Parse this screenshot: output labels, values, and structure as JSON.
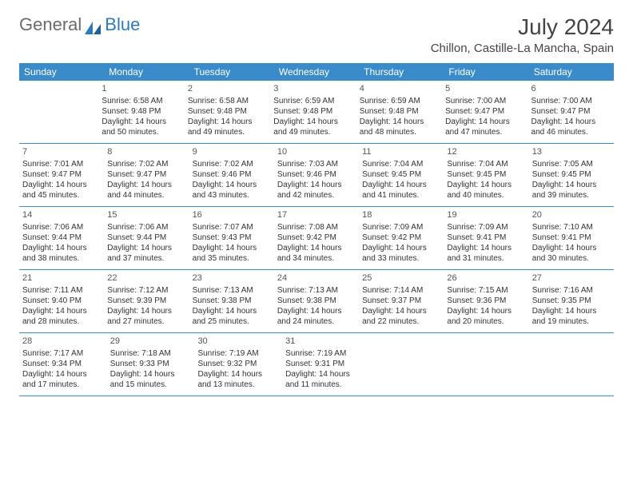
{
  "brand": {
    "part1": "General",
    "part2": "Blue"
  },
  "title": "July 2024",
  "location": "Chillon, Castille-La Mancha, Spain",
  "colors": {
    "header_bg": "#3a8bc9",
    "header_text": "#ffffff",
    "row_border": "#3a8bc9",
    "body_text": "#333333",
    "logo_gray": "#6b6b6b",
    "logo_blue": "#2b7bbf",
    "page_bg": "#ffffff"
  },
  "days_of_week": [
    "Sunday",
    "Monday",
    "Tuesday",
    "Wednesday",
    "Thursday",
    "Friday",
    "Saturday"
  ],
  "weeks": [
    [
      null,
      {
        "n": "1",
        "sr": "Sunrise: 6:58 AM",
        "ss": "Sunset: 9:48 PM",
        "d1": "Daylight: 14 hours",
        "d2": "and 50 minutes."
      },
      {
        "n": "2",
        "sr": "Sunrise: 6:58 AM",
        "ss": "Sunset: 9:48 PM",
        "d1": "Daylight: 14 hours",
        "d2": "and 49 minutes."
      },
      {
        "n": "3",
        "sr": "Sunrise: 6:59 AM",
        "ss": "Sunset: 9:48 PM",
        "d1": "Daylight: 14 hours",
        "d2": "and 49 minutes."
      },
      {
        "n": "4",
        "sr": "Sunrise: 6:59 AM",
        "ss": "Sunset: 9:48 PM",
        "d1": "Daylight: 14 hours",
        "d2": "and 48 minutes."
      },
      {
        "n": "5",
        "sr": "Sunrise: 7:00 AM",
        "ss": "Sunset: 9:47 PM",
        "d1": "Daylight: 14 hours",
        "d2": "and 47 minutes."
      },
      {
        "n": "6",
        "sr": "Sunrise: 7:00 AM",
        "ss": "Sunset: 9:47 PM",
        "d1": "Daylight: 14 hours",
        "d2": "and 46 minutes."
      }
    ],
    [
      {
        "n": "7",
        "sr": "Sunrise: 7:01 AM",
        "ss": "Sunset: 9:47 PM",
        "d1": "Daylight: 14 hours",
        "d2": "and 45 minutes."
      },
      {
        "n": "8",
        "sr": "Sunrise: 7:02 AM",
        "ss": "Sunset: 9:47 PM",
        "d1": "Daylight: 14 hours",
        "d2": "and 44 minutes."
      },
      {
        "n": "9",
        "sr": "Sunrise: 7:02 AM",
        "ss": "Sunset: 9:46 PM",
        "d1": "Daylight: 14 hours",
        "d2": "and 43 minutes."
      },
      {
        "n": "10",
        "sr": "Sunrise: 7:03 AM",
        "ss": "Sunset: 9:46 PM",
        "d1": "Daylight: 14 hours",
        "d2": "and 42 minutes."
      },
      {
        "n": "11",
        "sr": "Sunrise: 7:04 AM",
        "ss": "Sunset: 9:45 PM",
        "d1": "Daylight: 14 hours",
        "d2": "and 41 minutes."
      },
      {
        "n": "12",
        "sr": "Sunrise: 7:04 AM",
        "ss": "Sunset: 9:45 PM",
        "d1": "Daylight: 14 hours",
        "d2": "and 40 minutes."
      },
      {
        "n": "13",
        "sr": "Sunrise: 7:05 AM",
        "ss": "Sunset: 9:45 PM",
        "d1": "Daylight: 14 hours",
        "d2": "and 39 minutes."
      }
    ],
    [
      {
        "n": "14",
        "sr": "Sunrise: 7:06 AM",
        "ss": "Sunset: 9:44 PM",
        "d1": "Daylight: 14 hours",
        "d2": "and 38 minutes."
      },
      {
        "n": "15",
        "sr": "Sunrise: 7:06 AM",
        "ss": "Sunset: 9:44 PM",
        "d1": "Daylight: 14 hours",
        "d2": "and 37 minutes."
      },
      {
        "n": "16",
        "sr": "Sunrise: 7:07 AM",
        "ss": "Sunset: 9:43 PM",
        "d1": "Daylight: 14 hours",
        "d2": "and 35 minutes."
      },
      {
        "n": "17",
        "sr": "Sunrise: 7:08 AM",
        "ss": "Sunset: 9:42 PM",
        "d1": "Daylight: 14 hours",
        "d2": "and 34 minutes."
      },
      {
        "n": "18",
        "sr": "Sunrise: 7:09 AM",
        "ss": "Sunset: 9:42 PM",
        "d1": "Daylight: 14 hours",
        "d2": "and 33 minutes."
      },
      {
        "n": "19",
        "sr": "Sunrise: 7:09 AM",
        "ss": "Sunset: 9:41 PM",
        "d1": "Daylight: 14 hours",
        "d2": "and 31 minutes."
      },
      {
        "n": "20",
        "sr": "Sunrise: 7:10 AM",
        "ss": "Sunset: 9:41 PM",
        "d1": "Daylight: 14 hours",
        "d2": "and 30 minutes."
      }
    ],
    [
      {
        "n": "21",
        "sr": "Sunrise: 7:11 AM",
        "ss": "Sunset: 9:40 PM",
        "d1": "Daylight: 14 hours",
        "d2": "and 28 minutes."
      },
      {
        "n": "22",
        "sr": "Sunrise: 7:12 AM",
        "ss": "Sunset: 9:39 PM",
        "d1": "Daylight: 14 hours",
        "d2": "and 27 minutes."
      },
      {
        "n": "23",
        "sr": "Sunrise: 7:13 AM",
        "ss": "Sunset: 9:38 PM",
        "d1": "Daylight: 14 hours",
        "d2": "and 25 minutes."
      },
      {
        "n": "24",
        "sr": "Sunrise: 7:13 AM",
        "ss": "Sunset: 9:38 PM",
        "d1": "Daylight: 14 hours",
        "d2": "and 24 minutes."
      },
      {
        "n": "25",
        "sr": "Sunrise: 7:14 AM",
        "ss": "Sunset: 9:37 PM",
        "d1": "Daylight: 14 hours",
        "d2": "and 22 minutes."
      },
      {
        "n": "26",
        "sr": "Sunrise: 7:15 AM",
        "ss": "Sunset: 9:36 PM",
        "d1": "Daylight: 14 hours",
        "d2": "and 20 minutes."
      },
      {
        "n": "27",
        "sr": "Sunrise: 7:16 AM",
        "ss": "Sunset: 9:35 PM",
        "d1": "Daylight: 14 hours",
        "d2": "and 19 minutes."
      }
    ],
    [
      {
        "n": "28",
        "sr": "Sunrise: 7:17 AM",
        "ss": "Sunset: 9:34 PM",
        "d1": "Daylight: 14 hours",
        "d2": "and 17 minutes."
      },
      {
        "n": "29",
        "sr": "Sunrise: 7:18 AM",
        "ss": "Sunset: 9:33 PM",
        "d1": "Daylight: 14 hours",
        "d2": "and 15 minutes."
      },
      {
        "n": "30",
        "sr": "Sunrise: 7:19 AM",
        "ss": "Sunset: 9:32 PM",
        "d1": "Daylight: 14 hours",
        "d2": "and 13 minutes."
      },
      {
        "n": "31",
        "sr": "Sunrise: 7:19 AM",
        "ss": "Sunset: 9:31 PM",
        "d1": "Daylight: 14 hours",
        "d2": "and 11 minutes."
      },
      null,
      null,
      null
    ]
  ]
}
